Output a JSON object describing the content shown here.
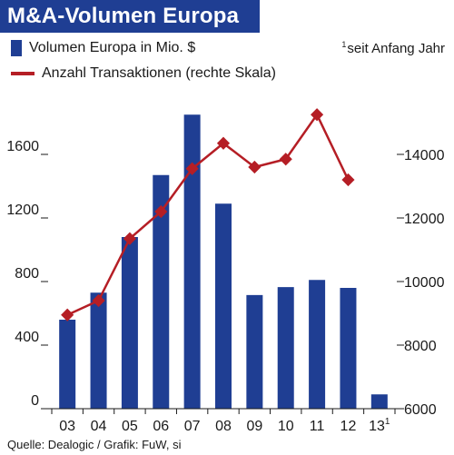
{
  "header": {
    "title": "M&A-Volumen Europa",
    "footnote_mark": "1",
    "footnote_text": "seit Anfang Jahr",
    "source": "Quelle: Dealogic / Grafik: FuW, si"
  },
  "colors": {
    "title_background": "#1f3e93",
    "bar": "#1f3e93",
    "line": "#b51e25"
  },
  "chart_data": {
    "type": "bar",
    "categories": [
      "03",
      "04",
      "05",
      "06",
      "07",
      "08",
      "09",
      "10",
      "11",
      "12",
      "13"
    ],
    "category_superscripts": [
      "",
      "",
      "",
      "",
      "",
      "",
      "",
      "",
      "",
      "",
      "1"
    ],
    "series": [
      {
        "name": "Volumen Europa in Mio. $",
        "type": "bar",
        "axis": "left",
        "values": [
          560,
          730,
          1080,
          1470,
          1850,
          1290,
          715,
          765,
          810,
          760,
          90
        ]
      },
      {
        "name": "Anzahl Transaktionen (rechte Skala)",
        "type": "line",
        "axis": "right",
        "values": [
          8950,
          9400,
          11350,
          12200,
          13550,
          14350,
          13600,
          13850,
          15250,
          13200,
          null
        ]
      }
    ],
    "ylim_left": [
      0,
      2000
    ],
    "yticks_left": [
      0,
      400,
      800,
      1200,
      1600
    ],
    "ylim_right": [
      6000,
      16000
    ],
    "yticks_right": [
      6000,
      8000,
      10000,
      12000,
      14000
    ],
    "grid": false,
    "legend_position": "top-left"
  }
}
